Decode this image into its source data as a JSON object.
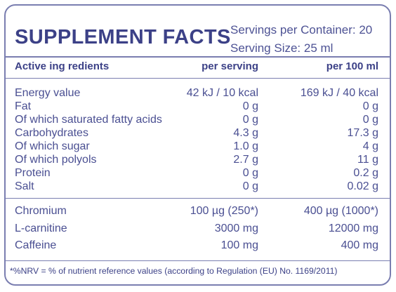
{
  "panel": {
    "title": "SUPPLEMENT FACTS",
    "servings_per_container": "Servings per Container: 20",
    "serving_size": "Serving Size: 25 ml"
  },
  "columns": {
    "active": "Active ing redients",
    "per_serving": "per serving",
    "per_100ml": "per 100 ml"
  },
  "nutrients": [
    {
      "name": "Energy  value",
      "per_serving": "42 kJ / 10 kcal",
      "per_100ml": "169 kJ / 40 kcal"
    },
    {
      "name": "Fat",
      "per_serving": "0 g",
      "per_100ml": "0 g"
    },
    {
      "name": "Of which saturated fatty acids",
      "per_serving": "0 g",
      "per_100ml": "0 g"
    },
    {
      "name": "Carbohydrates",
      "per_serving": "4.3 g",
      "per_100ml": "17.3 g"
    },
    {
      "name": "Of which sugar",
      "per_serving": "1.0 g",
      "per_100ml": "4 g"
    },
    {
      "name": "Of which polyols",
      "per_serving": "2.7 g",
      "per_100ml": "11 g"
    },
    {
      "name": "Protein",
      "per_serving": "0 g",
      "per_100ml": "0.2 g"
    },
    {
      "name": "Salt",
      "per_serving": "0 g",
      "per_100ml": "0.02 g"
    }
  ],
  "actives": [
    {
      "name": "Chromium",
      "per_serving": "100 µg  (250*)",
      "per_100ml": "400 µg (1000*)"
    },
    {
      "name": "L-carnitine",
      "per_serving": "3000 mg",
      "per_100ml": "12000 mg"
    },
    {
      "name": "Caffeine",
      "per_serving": "100 mg",
      "per_100ml": "400 mg"
    }
  ],
  "footnote": "*%NRV = % of nutrient reference values (according to Regulation (EU) No. 1169/2011)",
  "colors": {
    "text": "#40458a",
    "border": "#7a7eb0",
    "background": "#ffffff"
  }
}
